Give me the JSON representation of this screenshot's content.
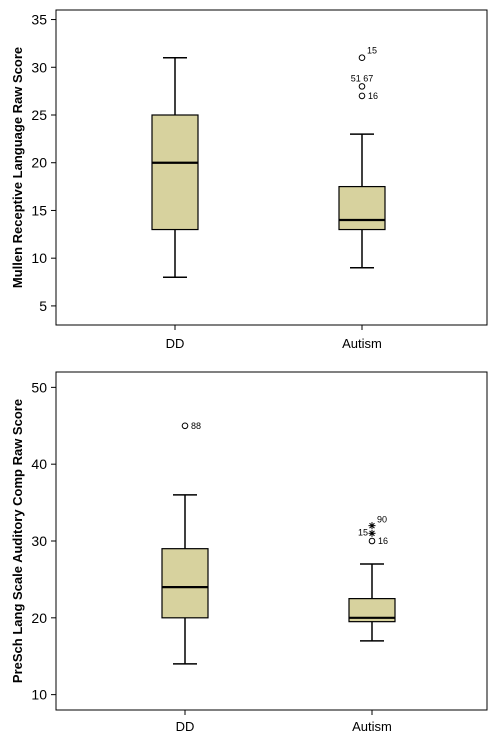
{
  "chart_data": [
    {
      "type": "boxplot",
      "ylabel": "Mullen Receptive Language  Raw Score",
      "ylim": [
        3,
        36
      ],
      "yticks": [
        5,
        10,
        15,
        20,
        25,
        30,
        35
      ],
      "grid": false,
      "categories": [
        "DD",
        "Autism"
      ],
      "box_color": "#d7d29e",
      "boxes": [
        {
          "category": "DD",
          "min": 8,
          "q1": 13,
          "median": 20,
          "q3": 25,
          "max": 31,
          "outliers": []
        },
        {
          "category": "Autism",
          "min": 9,
          "q1": 13,
          "median": 14,
          "q3": 17.5,
          "max": 23,
          "outliers": [
            {
              "value": 31,
              "label": "15",
              "marker": "circle"
            },
            {
              "value": 28,
              "label": "51  67",
              "marker": "circle"
            },
            {
              "value": 27,
              "label": "16",
              "marker": "circle"
            }
          ]
        }
      ]
    },
    {
      "type": "boxplot",
      "ylabel": "PreSch Lang Scale Auditory Comp Raw Score",
      "ylim": [
        8,
        52
      ],
      "yticks": [
        10,
        20,
        30,
        40,
        50
      ],
      "grid": false,
      "categories": [
        "DD",
        "Autism"
      ],
      "box_color": "#d7d29e",
      "boxes": [
        {
          "category": "DD",
          "min": 14,
          "q1": 20,
          "median": 24,
          "q3": 29,
          "max": 36,
          "outliers": [
            {
              "value": 45,
              "label": "88",
              "marker": "circle"
            }
          ]
        },
        {
          "category": "Autism",
          "min": 17,
          "q1": 19.5,
          "median": 20,
          "q3": 22.5,
          "max": 27,
          "outliers": [
            {
              "value": 32,
              "label": "90",
              "marker": "star"
            },
            {
              "value": 31,
              "label": "15",
              "marker": "star"
            },
            {
              "value": 30,
              "label": "16",
              "marker": "circle"
            }
          ]
        }
      ]
    }
  ]
}
